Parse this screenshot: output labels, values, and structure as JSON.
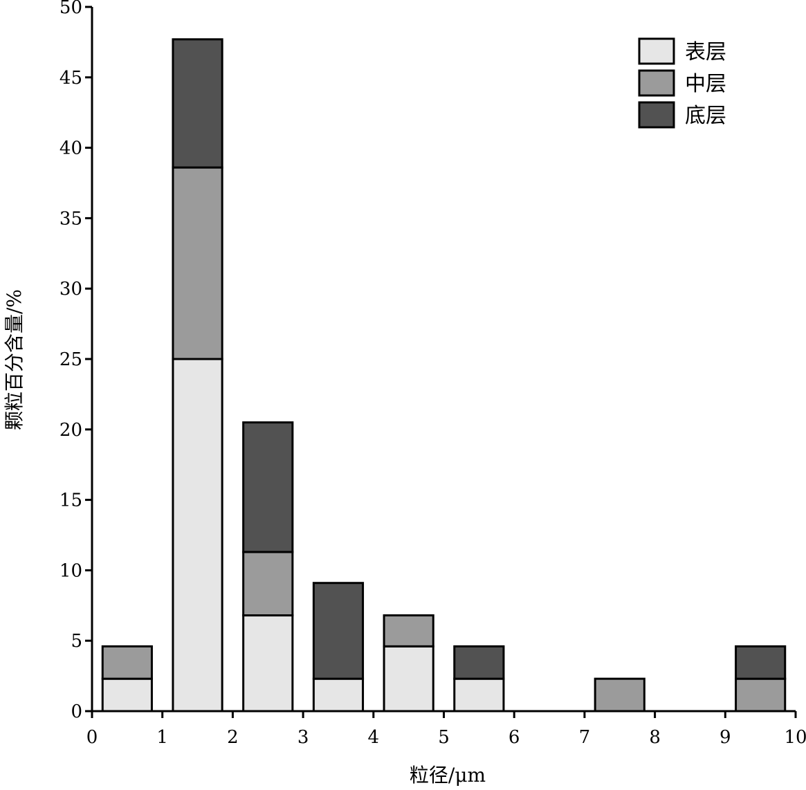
{
  "chart_data": {
    "type": "bar",
    "stacked": true,
    "title": "",
    "xlabel": "粒径/μm",
    "ylabel": "颗粒百分含量/%",
    "xlim": [
      0,
      10
    ],
    "ylim": [
      0,
      50
    ],
    "x_ticks": [
      "0",
      "1",
      "2",
      "3",
      "4",
      "5",
      "6",
      "7",
      "8",
      "9",
      "10"
    ],
    "y_ticks": [
      "0",
      "5",
      "10",
      "15",
      "20",
      "25",
      "30",
      "35",
      "40",
      "45",
      "50"
    ],
    "bin_centers": [
      0.5,
      1.5,
      2.5,
      3.5,
      4.5,
      5.5,
      6.5,
      7.5,
      8.5,
      9.5
    ],
    "series": [
      {
        "name": "表层",
        "color": "#e6e6e6",
        "values": [
          2.3,
          25.0,
          6.8,
          2.3,
          4.6,
          2.3,
          0,
          0,
          0,
          0
        ]
      },
      {
        "name": "中层",
        "color": "#9b9b9b",
        "values": [
          2.3,
          13.6,
          4.5,
          0,
          2.2,
          0,
          0,
          2.3,
          0,
          2.3
        ]
      },
      {
        "name": "底层",
        "color": "#525252",
        "values": [
          0,
          9.1,
          9.2,
          6.8,
          0,
          2.3,
          0,
          0,
          0,
          2.3
        ]
      }
    ],
    "grid": false,
    "legend_position": "top-right"
  }
}
